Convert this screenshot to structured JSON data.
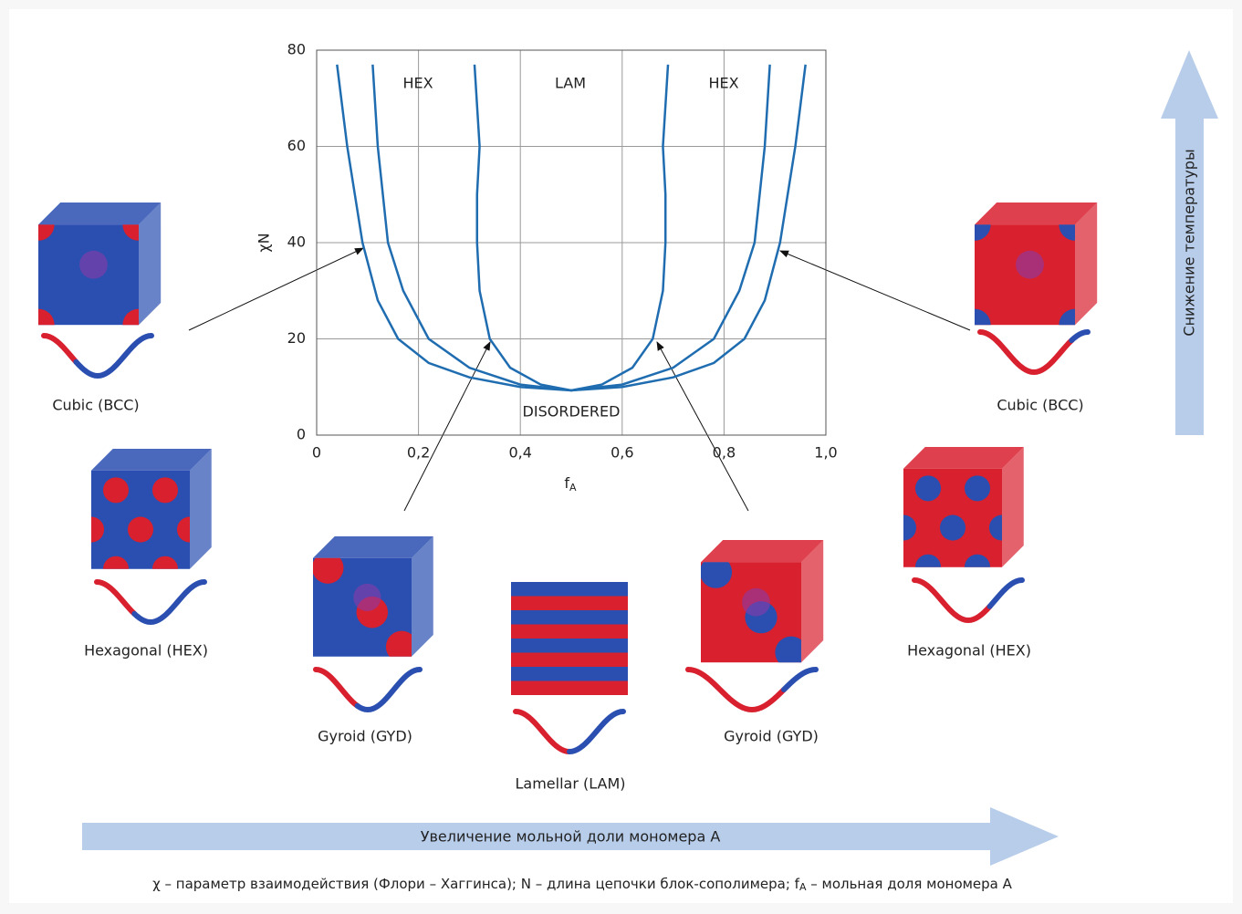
{
  "chart_data": {
    "type": "line",
    "xlabel": {
      "text": "f",
      "subscript": "A"
    },
    "ylabel": "χN",
    "xlim": [
      0,
      1
    ],
    "ylim": [
      0,
      80
    ],
    "xticks": [
      0,
      {
        "value": 0.2,
        "label": "0,2"
      },
      {
        "value": 0.4,
        "label": "0,4"
      },
      {
        "value": 0.6,
        "label": "0,6"
      },
      {
        "value": 0.8,
        "label": "0,8"
      },
      {
        "value": 1,
        "label": "1,0"
      }
    ],
    "yticks": [
      0,
      20,
      40,
      60,
      80
    ],
    "grid": true,
    "annotations": [
      "HEX",
      "LAM",
      "HEX",
      "DISORDERED"
    ],
    "series": [
      {
        "color": "#1f6db0",
        "x": [
          0.04,
          0.06,
          0.09,
          0.12,
          0.16,
          0.22,
          0.3,
          0.4,
          0.5,
          0.6,
          0.7,
          0.78,
          0.84,
          0.88,
          0.91,
          0.94,
          0.96
        ],
        "values": [
          77,
          60,
          40,
          28,
          20,
          15,
          12,
          10,
          9.3,
          10,
          12,
          15,
          20,
          28,
          40,
          60,
          77
        ]
      },
      {
        "color": "#1f6db0",
        "x": [
          0.11,
          0.12,
          0.14,
          0.17,
          0.22,
          0.3,
          0.4,
          0.5,
          0.6,
          0.7,
          0.78,
          0.83,
          0.86,
          0.88,
          0.89
        ],
        "values": [
          77,
          60,
          40,
          30,
          20,
          14,
          10.5,
          9.3,
          10.5,
          14,
          20,
          30,
          40,
          60,
          77
        ]
      },
      {
        "color": "#1f6db0",
        "x": [
          0.31,
          0.32,
          0.315,
          0.315,
          0.32,
          0.34,
          0.38,
          0.44,
          0.5,
          0.56,
          0.62,
          0.66,
          0.68,
          0.685,
          0.685,
          0.68,
          0.69
        ],
        "values": [
          77,
          60,
          50,
          40,
          30,
          20,
          14,
          10.5,
          9.3,
          10.5,
          14,
          20,
          30,
          40,
          50,
          60,
          77
        ]
      }
    ]
  },
  "structures": [
    {
      "label": "Cubic (BCC)"
    },
    {
      "label": "Hexagonal (HEX)"
    },
    {
      "label": "Gyroid (GYD)"
    },
    {
      "label": "Lamellar (LAM)"
    },
    {
      "label": "Gyroid (GYD)"
    },
    {
      "label": "Hexagonal (HEX)"
    },
    {
      "label": "Cubic (BCC)"
    }
  ],
  "temperature_arrow": "Снижение температуры",
  "fraction_arrow": "Увеличение мольной доли мономера А",
  "footnote": [
    "χ – параметр взаимодействия (Флори – Хаггинса); N – длина цепочки блок-сополимера; f",
    "A",
    " – мольная доля мономера А"
  ]
}
